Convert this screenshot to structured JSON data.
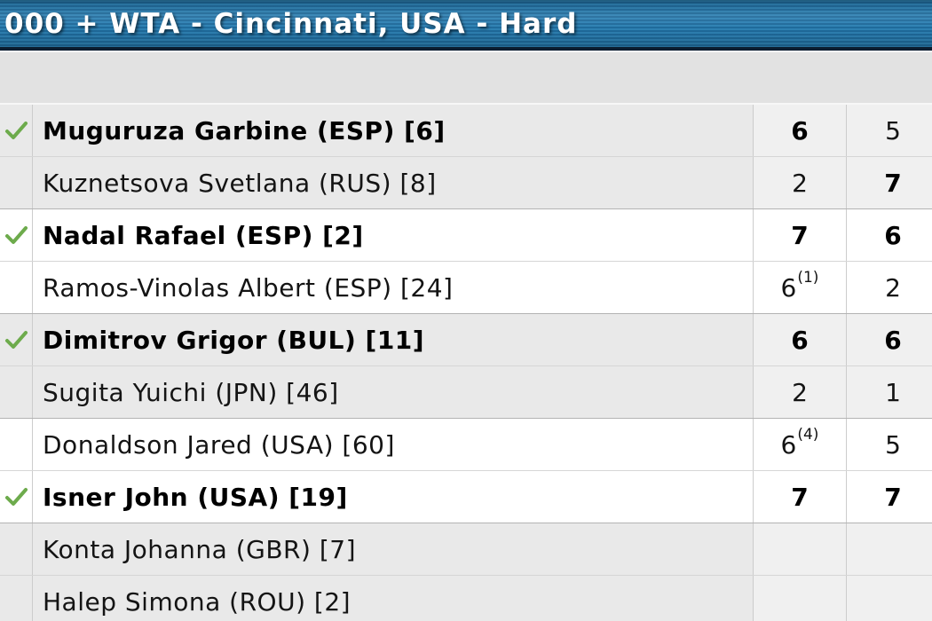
{
  "header": {
    "title": "000 + WTA - Cincinnati, USA - Hard"
  },
  "icons": {
    "winner_check": "✓"
  },
  "colors": {
    "header_blue": "#2472a4",
    "header_stripe_light": "#2e81b3",
    "header_stripe_dark": "#1f6a9b",
    "header_border": "#0b1d30",
    "band_gray": "#e2e2e2",
    "row_gray": "#e9e9e9",
    "row_gray_score": "#f0f0f0",
    "row_white": "#ffffff",
    "grid_line": "#cccccc",
    "match_separator": "#b3b3b3",
    "check_green": "#6dab4c",
    "text_black": "#000000"
  },
  "matches": [
    {
      "shade": "gray",
      "rows": [
        {
          "name": "Muguruza Garbine (ESP) [6]",
          "bold": true,
          "winner_check": true,
          "sets": [
            {
              "score": "6",
              "bold": true
            },
            {
              "score": "5",
              "bold": false
            }
          ]
        },
        {
          "name": "Kuznetsova Svetlana (RUS) [8]",
          "bold": false,
          "winner_check": false,
          "sets": [
            {
              "score": "2",
              "bold": false
            },
            {
              "score": "7",
              "bold": true
            }
          ]
        }
      ]
    },
    {
      "shade": "white",
      "rows": [
        {
          "name": "Nadal Rafael (ESP) [2]",
          "bold": true,
          "winner_check": true,
          "sets": [
            {
              "score": "7",
              "bold": true
            },
            {
              "score": "6",
              "bold": true
            }
          ]
        },
        {
          "name": "Ramos-Vinolas Albert (ESP) [24]",
          "bold": false,
          "winner_check": false,
          "sets": [
            {
              "score": "6",
              "tiebreak": "(1)",
              "bold": false
            },
            {
              "score": "2",
              "bold": false
            }
          ]
        }
      ]
    },
    {
      "shade": "gray",
      "rows": [
        {
          "name": "Dimitrov Grigor (BUL) [11]",
          "bold": true,
          "winner_check": true,
          "sets": [
            {
              "score": "6",
              "bold": true
            },
            {
              "score": "6",
              "bold": true
            }
          ]
        },
        {
          "name": "Sugita Yuichi (JPN) [46]",
          "bold": false,
          "winner_check": false,
          "sets": [
            {
              "score": "2",
              "bold": false
            },
            {
              "score": "1",
              "bold": false
            }
          ]
        }
      ]
    },
    {
      "shade": "white",
      "rows": [
        {
          "name": "Donaldson Jared (USA) [60]",
          "bold": false,
          "winner_check": false,
          "sets": [
            {
              "score": "6",
              "tiebreak": "(4)",
              "bold": false
            },
            {
              "score": "5",
              "bold": false
            }
          ]
        },
        {
          "name": "Isner John (USA) [19]",
          "bold": true,
          "winner_check": true,
          "sets": [
            {
              "score": "7",
              "bold": true
            },
            {
              "score": "7",
              "bold": true
            }
          ]
        }
      ]
    },
    {
      "shade": "gray",
      "rows": [
        {
          "name": "Konta Johanna (GBR) [7]",
          "bold": false,
          "winner_check": false,
          "sets": []
        },
        {
          "name": "Halep Simona (ROU) [2]",
          "bold": false,
          "winner_check": false,
          "sets": []
        }
      ]
    }
  ]
}
